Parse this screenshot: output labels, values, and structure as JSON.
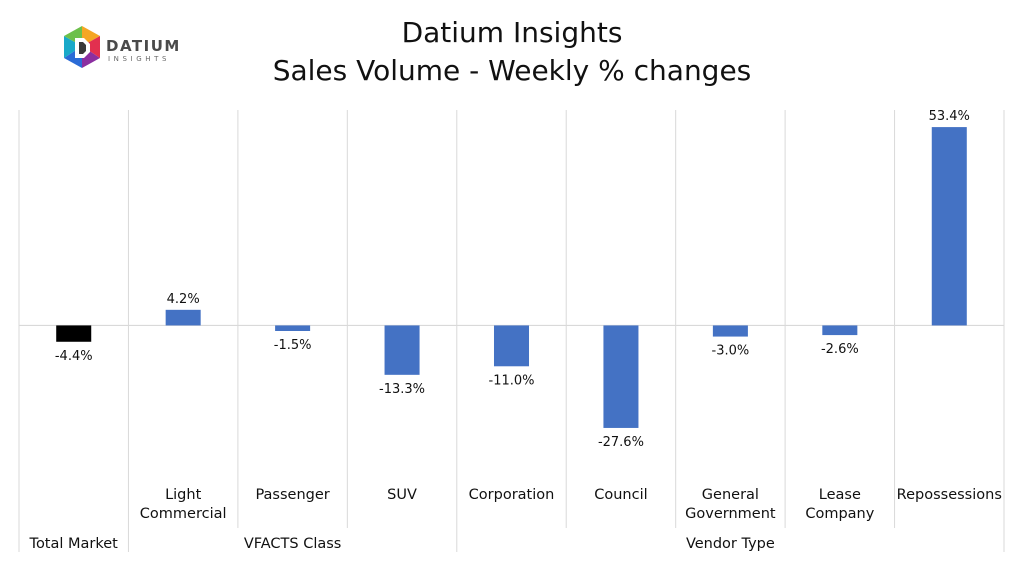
{
  "brand": {
    "name": "DATIUM",
    "tagline": "INSIGHTS",
    "colors": [
      "#f5a623",
      "#e2304f",
      "#8b2fa0",
      "#2b6bd6",
      "#19a9c9",
      "#6cc04a"
    ]
  },
  "title_lines": [
    "Datium Insights",
    "Sales Volume - Weekly % changes"
  ],
  "chart_data": {
    "type": "bar",
    "title": "Datium Insights / Sales Volume - Weekly % changes",
    "categories": [
      {
        "label": [
          "Total Market"
        ],
        "value": -4.4,
        "data_label": "-4.4%",
        "color": "#000000"
      },
      {
        "label": [
          "Light",
          "Commercial"
        ],
        "value": 4.2,
        "data_label": "4.2%",
        "color": "#4472c4"
      },
      {
        "label": [
          "Passenger"
        ],
        "value": -1.5,
        "data_label": "-1.5%",
        "color": "#4472c4"
      },
      {
        "label": [
          "SUV"
        ],
        "value": -13.3,
        "data_label": "-13.3%",
        "color": "#4472c4"
      },
      {
        "label": [
          "Corporation"
        ],
        "value": -11.0,
        "data_label": "-11.0%",
        "color": "#4472c4"
      },
      {
        "label": [
          "Council"
        ],
        "value": -27.6,
        "data_label": "-27.6%",
        "color": "#4472c4"
      },
      {
        "label": [
          "General",
          "Government"
        ],
        "value": -3.0,
        "data_label": "-3.0%",
        "color": "#4472c4"
      },
      {
        "label": [
          "Lease",
          "Company"
        ],
        "value": -2.6,
        "data_label": "-2.6%",
        "color": "#4472c4"
      },
      {
        "label": [
          "Repossessions"
        ],
        "value": 53.4,
        "data_label": "53.4%",
        "color": "#4472c4"
      }
    ],
    "groups": [
      {
        "label": "Total Market",
        "start": 0,
        "end": 0,
        "has_sublabels": false
      },
      {
        "label": "VFACTS Class",
        "start": 1,
        "end": 3,
        "has_sublabels": true
      },
      {
        "label": "Vendor Type",
        "start": 4,
        "end": 8,
        "has_sublabels": true
      }
    ],
    "ylim": [
      -40,
      58
    ],
    "y_axis_visible": false,
    "grid": false,
    "legend": "none"
  }
}
